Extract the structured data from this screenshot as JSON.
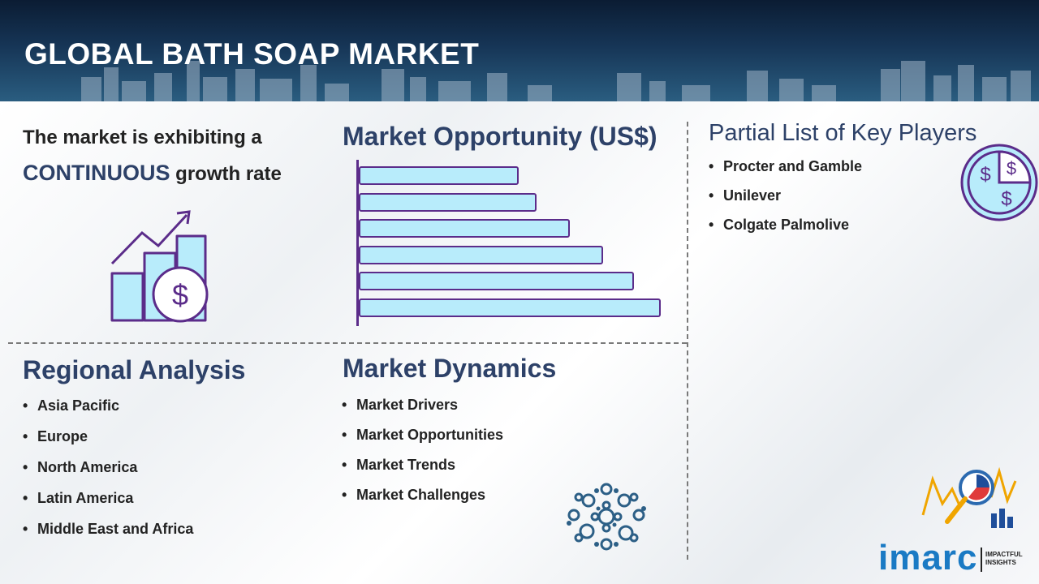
{
  "header": {
    "title": "GLOBAL BATH SOAP MARKET"
  },
  "growth": {
    "line1": "The market is exhibiting a",
    "highlight": "CONTINUOUS",
    "line2_rest": "growth rate",
    "icon": "growth-chart-dollar-icon"
  },
  "opportunity": {
    "title": "Market Opportunity (US$)",
    "icon": "horizontal-bar-chart"
  },
  "chart_data": {
    "type": "bar",
    "orientation": "horizontal",
    "title": "Market Opportunity (US$)",
    "categories": [
      "",
      "",
      "",
      "",
      "",
      ""
    ],
    "values": [
      53,
      59,
      70,
      81,
      91,
      100
    ],
    "xlim": [
      0,
      100
    ]
  },
  "key_players": {
    "title": "Partial List of Key Players",
    "items": [
      "Procter and Gamble",
      "Unilever",
      "Colgate Palmolive"
    ],
    "icon": "dollar-pie-icon"
  },
  "regional": {
    "title": "Regional Analysis",
    "items": [
      "Asia Pacific",
      "Europe",
      "North America",
      "Latin America",
      "Middle East and Africa"
    ]
  },
  "dynamics": {
    "title": "Market Dynamics",
    "items": [
      "Market Drivers",
      "Market Opportunities",
      "Market Trends",
      "Market Challenges"
    ],
    "icon": "gears-circle-icon"
  },
  "brand": {
    "logo": "imarc",
    "tagline": "IMPACTFUL INSIGHTS",
    "icon": "analytics-magnifier-icon"
  },
  "colors": {
    "accent": "#2d4168",
    "bar_fill": "#b8ecfb",
    "bar_stroke": "#5b2c8a",
    "header_bg": "#163556"
  }
}
